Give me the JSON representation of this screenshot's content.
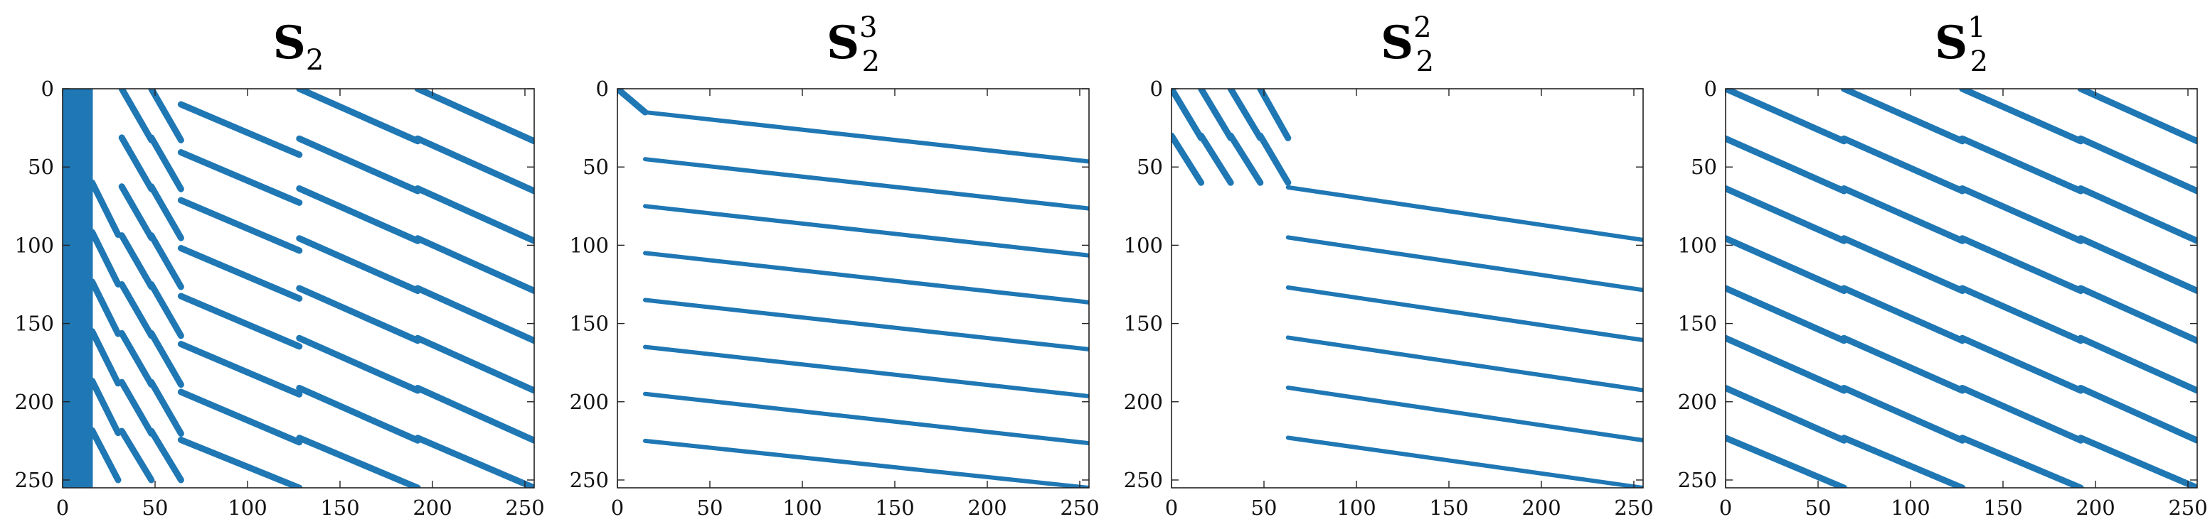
{
  "colors": {
    "marker": "#1f77b4",
    "axes": "#222222",
    "background": "#ffffff"
  },
  "chart_data": [
    {
      "type": "scatter",
      "title": {
        "base": "S",
        "sub": "2",
        "sup": ""
      },
      "xlim": [
        0,
        255
      ],
      "ylim": [
        0,
        255
      ],
      "y_inverted": true,
      "xticks": [
        0,
        50,
        100,
        150,
        200,
        250
      ],
      "yticks": [
        0,
        50,
        100,
        150,
        200,
        250
      ],
      "grid": false,
      "bands": [
        {
          "x0": 1,
          "x1": 1,
          "y0": 0,
          "y1": 255
        },
        {
          "x0": 3,
          "x1": 3,
          "y0": 0,
          "y1": 255
        },
        {
          "x0": 5,
          "x1": 5,
          "y0": 0,
          "y1": 255
        },
        {
          "x0": 7,
          "x1": 7,
          "y0": 0,
          "y1": 255
        },
        {
          "x0": 9,
          "x1": 9,
          "y0": 0,
          "y1": 255
        },
        {
          "x0": 11,
          "x1": 11,
          "y0": 0,
          "y1": 255
        },
        {
          "x0": 13,
          "x1": 13,
          "y0": 0,
          "y1": 255
        },
        {
          "x0": 15,
          "x1": 15,
          "y0": 0,
          "y1": 255
        },
        {
          "x0": 16,
          "x1": 30,
          "y0": 60,
          "y1": 250
        },
        {
          "x0": 32,
          "x1": 48,
          "y0": 0,
          "y1": 250
        },
        {
          "x0": 48,
          "x1": 64,
          "y0": 0,
          "y1": 250
        },
        {
          "x0": 64,
          "x1": 128,
          "y0": 10,
          "y1": 255
        },
        {
          "x0": 128,
          "x1": 192,
          "y0": 0,
          "y1": 255
        },
        {
          "x0": 192,
          "x1": 255,
          "y0": 0,
          "y1": 255
        }
      ]
    },
    {
      "type": "scatter",
      "title": {
        "base": "S",
        "sub": "2",
        "sup": "3"
      },
      "xlim": [
        0,
        255
      ],
      "ylim": [
        0,
        255
      ],
      "y_inverted": true,
      "xticks": [
        0,
        50,
        100,
        150,
        200,
        250
      ],
      "yticks": [
        0,
        50,
        100,
        150,
        200,
        250
      ],
      "grid": false,
      "bands": [
        {
          "x0": 0,
          "x1": 15,
          "y0": 0,
          "y1": 15
        },
        {
          "x0": 15,
          "x1": 255,
          "y0": 15,
          "y1": 255
        }
      ]
    },
    {
      "type": "scatter",
      "title": {
        "base": "S",
        "sub": "2",
        "sup": "2"
      },
      "xlim": [
        0,
        255
      ],
      "ylim": [
        0,
        255
      ],
      "y_inverted": true,
      "xticks": [
        0,
        50,
        100,
        150,
        200,
        250
      ],
      "yticks": [
        0,
        50,
        100,
        150,
        200,
        250
      ],
      "grid": false,
      "bands": [
        {
          "x0": 0,
          "x1": 16,
          "y0": 0,
          "y1": 60
        },
        {
          "x0": 16,
          "x1": 32,
          "y0": 0,
          "y1": 60
        },
        {
          "x0": 32,
          "x1": 48,
          "y0": 0,
          "y1": 60
        },
        {
          "x0": 48,
          "x1": 63,
          "y0": 0,
          "y1": 60
        },
        {
          "x0": 63,
          "x1": 255,
          "y0": 63,
          "y1": 255
        }
      ]
    },
    {
      "type": "scatter",
      "title": {
        "base": "S",
        "sub": "2",
        "sup": "1"
      },
      "xlim": [
        0,
        255
      ],
      "ylim": [
        0,
        255
      ],
      "y_inverted": true,
      "xticks": [
        0,
        50,
        100,
        150,
        200,
        250
      ],
      "yticks": [
        0,
        50,
        100,
        150,
        200,
        250
      ],
      "grid": false,
      "bands": [
        {
          "x0": 0,
          "x1": 64,
          "y0": 0,
          "y1": 255
        },
        {
          "x0": 64,
          "x1": 128,
          "y0": 0,
          "y1": 255
        },
        {
          "x0": 128,
          "x1": 192,
          "y0": 0,
          "y1": 255
        },
        {
          "x0": 192,
          "x1": 255,
          "y0": 0,
          "y1": 255
        }
      ]
    }
  ]
}
